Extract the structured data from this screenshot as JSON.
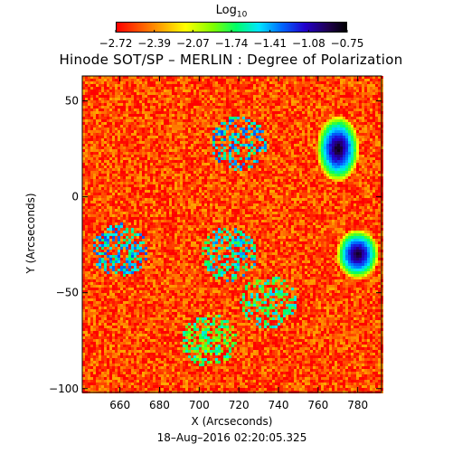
{
  "colorbar": {
    "label_main": "Log",
    "label_sub": "10",
    "tick_labels": [
      "−2.72",
      "−2.39",
      "−2.07",
      "−1.74",
      "−1.41",
      "−1.08",
      "−0.75"
    ],
    "colors": [
      "#ff0000",
      "#ff7f00",
      "#ffff00",
      "#7fff00",
      "#00ff66",
      "#00e5ff",
      "#0066ff",
      "#2200cc",
      "#200050",
      "#000000"
    ]
  },
  "chart_data": {
    "type": "heatmap",
    "title": "Hinode SOT/SP – MERLIN : Degree of Polarization",
    "xlabel": "X (Arcseconds)",
    "ylabel": "Y (Arcseconds)",
    "xlim": [
      641,
      792
    ],
    "ylim": [
      -102,
      63
    ],
    "x_ticks": [
      660,
      680,
      700,
      720,
      740,
      760,
      780
    ],
    "y_ticks": [
      -100,
      -50,
      0,
      50
    ],
    "colorbar_range": [
      -2.72,
      -0.75
    ],
    "background_level": -2.6,
    "features": [
      {
        "kind": "spot",
        "x": 770,
        "y": 25,
        "rx": 5,
        "ry": 8,
        "peak": -0.78
      },
      {
        "kind": "spot",
        "x": 780,
        "y": -30,
        "rx": 5,
        "ry": 6,
        "peak": -0.8
      },
      {
        "kind": "network",
        "x": 720,
        "y": 28,
        "level": -1.6
      },
      {
        "kind": "network",
        "x": 715,
        "y": -30,
        "level": -1.7
      },
      {
        "kind": "network",
        "x": 660,
        "y": -28,
        "level": -1.6
      },
      {
        "kind": "network",
        "x": 735,
        "y": -55,
        "level": -1.8
      },
      {
        "kind": "network",
        "x": 705,
        "y": -75,
        "level": -1.9
      }
    ]
  },
  "timestamp": "18–Aug–2016 02:20:05.325"
}
